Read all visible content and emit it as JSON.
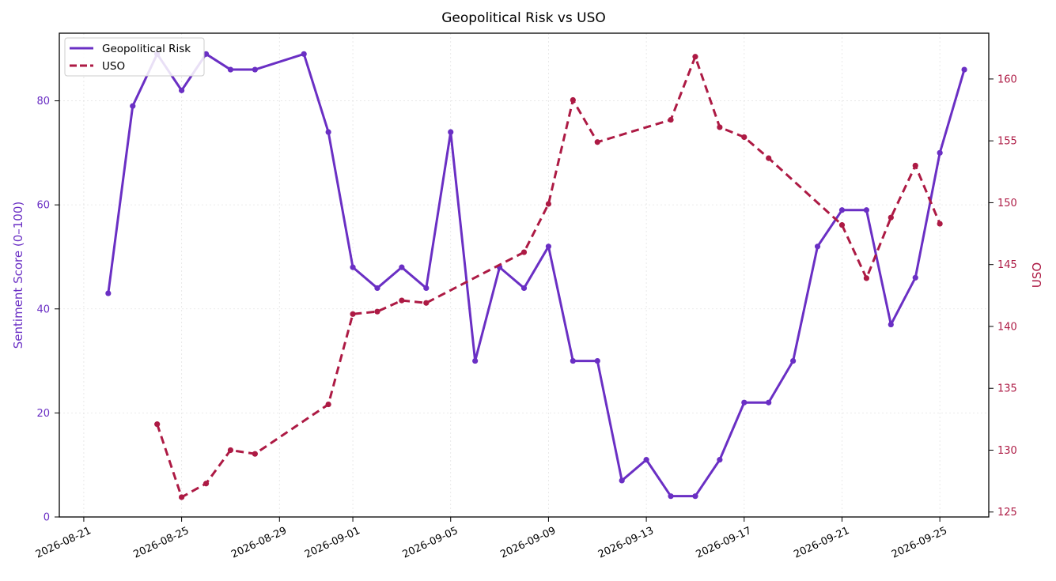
{
  "chart_data": {
    "type": "line",
    "title": "Geopolitical Risk vs USO",
    "ylabel_left": "Sentiment Score (0–100)",
    "ylabel_right": "USO",
    "ylim_left": [
      0,
      93
    ],
    "ylim_right": [
      124.6,
      163.7
    ],
    "yticks_left": [
      0,
      20,
      40,
      60,
      80
    ],
    "yticks_right": [
      125,
      130,
      135,
      140,
      145,
      150,
      155,
      160
    ],
    "xlim": [
      "2026-08-20",
      "2026-09-27"
    ],
    "xticks": [
      "2026-08-21",
      "2026-08-25",
      "2026-08-29",
      "2026-09-01",
      "2026-09-05",
      "2026-09-09",
      "2026-09-13",
      "2026-09-17",
      "2026-09-21",
      "2026-09-25"
    ],
    "grid": true,
    "legend_position": "top-left",
    "series": [
      {
        "name": "Geopolitical Risk",
        "axis": "left",
        "color": "#6a2fc4",
        "style": "solid",
        "x": [
          "2026-08-22",
          "2026-08-23",
          "2026-08-24",
          "2026-08-25",
          "2026-08-26",
          "2026-08-27",
          "2026-08-28",
          "2026-08-30",
          "2026-08-31",
          "2026-09-01",
          "2026-09-02",
          "2026-09-03",
          "2026-09-04",
          "2026-09-05",
          "2026-09-06",
          "2026-09-07",
          "2026-09-08",
          "2026-09-09",
          "2026-09-10",
          "2026-09-11",
          "2026-09-12",
          "2026-09-13",
          "2026-09-14",
          "2026-09-15",
          "2026-09-16",
          "2026-09-17",
          "2026-09-18",
          "2026-09-19",
          "2026-09-20",
          "2026-09-21",
          "2026-09-22",
          "2026-09-23",
          "2026-09-24",
          "2026-09-25",
          "2026-09-26"
        ],
        "values": [
          43,
          79,
          89,
          82,
          89,
          86,
          86,
          89,
          74,
          48,
          44,
          48,
          44,
          74,
          30,
          48,
          44,
          52,
          30,
          30,
          7,
          11,
          4,
          4,
          11,
          22,
          22,
          30,
          52,
          59,
          59,
          37,
          46,
          70,
          86
        ]
      },
      {
        "name": "USO",
        "axis": "right",
        "color": "#ad1a44",
        "style": "dashed",
        "x": [
          "2026-08-24",
          "2026-08-25",
          "2026-08-26",
          "2026-08-27",
          "2026-08-28",
          "2026-08-31",
          "2026-09-01",
          "2026-09-02",
          "2026-09-03",
          "2026-09-04",
          "2026-09-08",
          "2026-09-09",
          "2026-09-10",
          "2026-09-11",
          "2026-09-14",
          "2026-09-15",
          "2026-09-16",
          "2026-09-17",
          "2026-09-18",
          "2026-09-21",
          "2026-09-22",
          "2026-09-23",
          "2026-09-24",
          "2026-09-25"
        ],
        "values": [
          132.1,
          126.2,
          127.3,
          130.0,
          129.7,
          133.7,
          141.0,
          141.2,
          142.1,
          141.9,
          146.0,
          149.9,
          158.3,
          154.9,
          156.7,
          161.8,
          156.1,
          155.3,
          153.6,
          148.2,
          143.9,
          148.8,
          153.0,
          148.3
        ]
      }
    ]
  }
}
